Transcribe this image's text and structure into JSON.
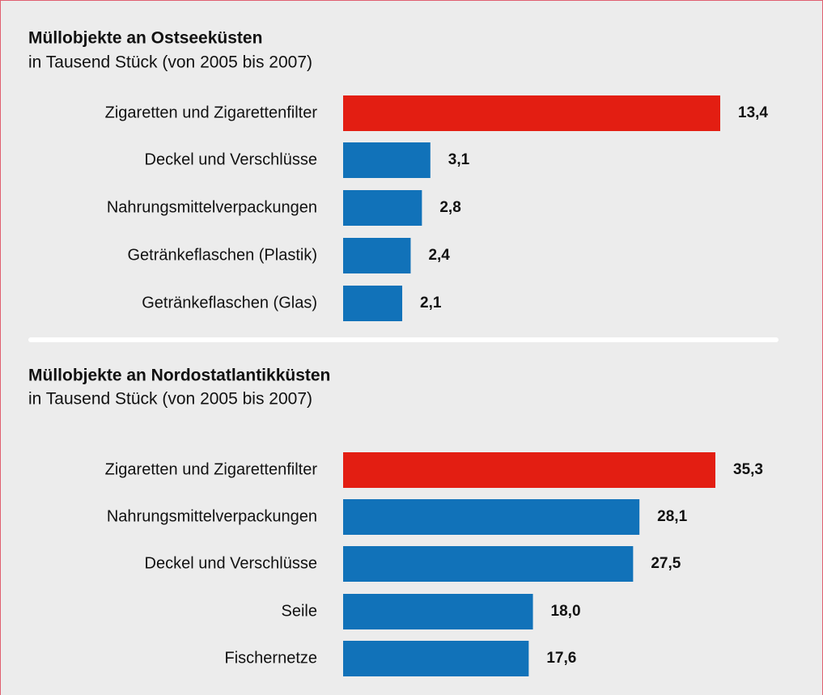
{
  "chart_data": [
    {
      "type": "barh",
      "title": "Müllobjekte an Ostseeküsten",
      "subtitle": "in Tausend Stück (von 2005 bis 2007)",
      "categories": [
        "Zigaretten und Zigarettenfilter",
        "Deckel und Verschlüsse",
        "Nahrungsmittelverpackungen",
        "Getränkeflaschen (Plastik)",
        "Getränkeflaschen (Glas)"
      ],
      "values": [
        13.4,
        3.1,
        2.8,
        2.4,
        2.1
      ],
      "value_labels": [
        "13,4",
        "3,1",
        "2,8",
        "2,4",
        "2,1"
      ],
      "colors": [
        "#e31e12",
        "#1172b9",
        "#1172b9",
        "#1172b9",
        "#1172b9"
      ]
    },
    {
      "type": "barh",
      "title": "Müllobjekte an Nordostatlantikküsten",
      "subtitle": "in Tausend Stück (von 2005 bis 2007)",
      "categories": [
        "Zigaretten und Zigarettenfilter",
        "Nahrungsmittelverpackungen",
        "Deckel und Verschlüsse",
        "Seile",
        "Fischernetze"
      ],
      "values": [
        35.3,
        28.1,
        27.5,
        18.0,
        17.6
      ],
      "value_labels": [
        "35,3",
        "28,1",
        "27,5",
        "18,0",
        "17,6"
      ],
      "colors": [
        "#e31e12",
        "#1172b9",
        "#1172b9",
        "#1172b9",
        "#1172b9"
      ]
    }
  ]
}
